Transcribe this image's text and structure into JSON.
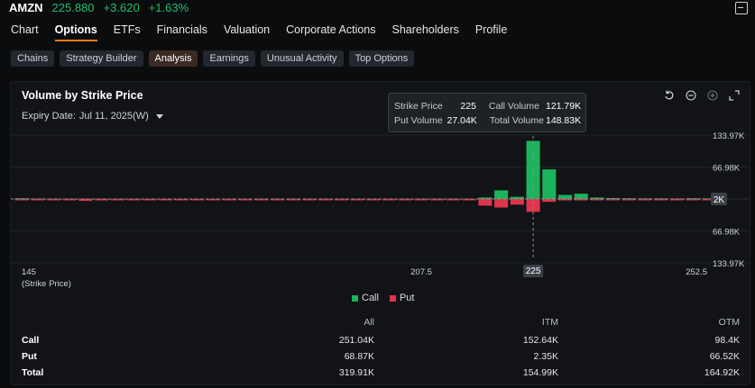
{
  "header": {
    "ticker": "AMZN",
    "price": "225.880",
    "change": "+3.620",
    "change_pct": "+1.63%",
    "accent_up": "#1fbf6b"
  },
  "tabs": [
    "Chart",
    "Options",
    "ETFs",
    "Financials",
    "Valuation",
    "Corporate Actions",
    "Shareholders",
    "Profile"
  ],
  "active_tab": "Options",
  "subtabs": [
    "Chains",
    "Strategy Builder",
    "Analysis",
    "Earnings",
    "Unusual Activity",
    "Top Options"
  ],
  "active_subtab": "Analysis",
  "panel": {
    "title": "Volume by Strike Price",
    "expiry_label": "Expiry Date:",
    "expiry_value": "Jul 11, 2025(W)",
    "tools": [
      "undo-icon",
      "zoom-out-icon",
      "zoom-in-icon",
      "expand-icon"
    ]
  },
  "tooltip": {
    "strike_label": "Strike Price",
    "strike_value": "225",
    "call_label": "Call Volume",
    "call_value": "121.79K",
    "put_label": "Put Volume",
    "put_value": "27.04K",
    "total_label": "Total Volume",
    "total_value": "148.83K"
  },
  "chart_data": {
    "type": "bar",
    "title": "Volume by Strike Price",
    "xlabel": "(Strike Price)",
    "x_ticks": [
      "145",
      "207.5",
      "252.5"
    ],
    "y_ticks": [
      "133.97K",
      "66.98K",
      "2K",
      "66.98K",
      "133.97K"
    ],
    "ylim": [
      -133970,
      133970
    ],
    "highlight_strike": "225",
    "crosshair_value": "2K",
    "colors": {
      "call": "#1cb35c",
      "put": "#e0334c"
    },
    "strikes": [
      145,
      147.5,
      150,
      152.5,
      155,
      157.5,
      160,
      162.5,
      165,
      167.5,
      170,
      172.5,
      175,
      177.5,
      180,
      182.5,
      185,
      187.5,
      190,
      192.5,
      195,
      197.5,
      200,
      202.5,
      205,
      207.5,
      210,
      212.5,
      215,
      217.5,
      220,
      222.5,
      225,
      227.5,
      230,
      232.5,
      235,
      237.5,
      240,
      242.5,
      245,
      247.5,
      250,
      252.5
    ],
    "series": [
      {
        "name": "Call",
        "values": [
          1500,
          900,
          600,
          500,
          400,
          300,
          300,
          300,
          300,
          300,
          300,
          300,
          300,
          300,
          300,
          300,
          300,
          300,
          300,
          300,
          300,
          300,
          300,
          300,
          300,
          300,
          300,
          300,
          300,
          3000,
          18000,
          4500,
          121790,
          62000,
          8500,
          11000,
          3000,
          2000,
          1500,
          1200,
          1200,
          1000,
          1500,
          1200
        ]
      },
      {
        "name": "Put",
        "values": [
          -600,
          -500,
          -500,
          -500,
          -4000,
          -3000,
          -2000,
          -1500,
          -1500,
          -1200,
          -1200,
          -1200,
          -1200,
          -1200,
          -1500,
          -1500,
          -1500,
          -1500,
          -1500,
          -1500,
          -1500,
          -1500,
          -2000,
          -2000,
          -2000,
          -2000,
          -2000,
          -2500,
          -2500,
          -14000,
          -18000,
          -12000,
          -27040,
          -6000,
          -3000,
          -3000,
          -1500,
          -1500,
          -1000,
          -800,
          -800,
          -600,
          -600,
          -500
        ]
      }
    ],
    "legend": [
      "Call",
      "Put"
    ],
    "legend_placement": "bottom-center",
    "grid": true
  },
  "stats": {
    "headers": [
      "All",
      "ITM",
      "OTM"
    ],
    "rows": [
      {
        "label": "Call",
        "all": "251.04K",
        "itm": "152.64K",
        "otm": "98.4K"
      },
      {
        "label": "Put",
        "all": "68.87K",
        "itm": "2.35K",
        "otm": "66.52K"
      },
      {
        "label": "Total",
        "all": "319.91K",
        "itm": "154.99K",
        "otm": "164.92K"
      }
    ]
  }
}
